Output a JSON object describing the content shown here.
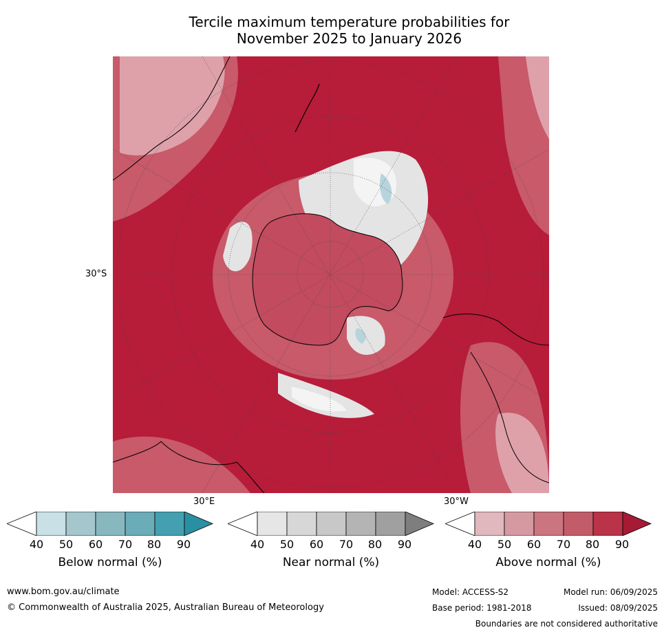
{
  "title_line1": "Tercile maximum temperature probabilities for",
  "title_line2": "November 2025 to January 2026",
  "map": {
    "lat_label": "30°S",
    "lon_label_e": "30°E",
    "lon_label_w": "30°W",
    "colors": {
      "above_strong": "#b71c39",
      "above_mid": "#c85a6a",
      "above_light": "#dea1aa",
      "near_light": "#e4e4e4",
      "below_light": "#b7d4dc"
    }
  },
  "legends": [
    {
      "label": "Below normal (%)",
      "ticks": [
        "40",
        "50",
        "60",
        "70",
        "80",
        "90"
      ],
      "colors": [
        "#ffffff",
        "#c8e0e6",
        "#a5c6cd",
        "#89b7bf",
        "#6aacb8",
        "#44a0b0",
        "#2a8fa3"
      ]
    },
    {
      "label": "Near normal (%)",
      "ticks": [
        "40",
        "50",
        "60",
        "70",
        "80",
        "90"
      ],
      "colors": [
        "#ffffff",
        "#e6e6e6",
        "#d7d7d7",
        "#c8c8c8",
        "#b4b4b4",
        "#a0a0a0",
        "#7e7e7e"
      ]
    },
    {
      "label": "Above normal (%)",
      "ticks": [
        "40",
        "50",
        "60",
        "70",
        "80",
        "90"
      ],
      "colors": [
        "#ffffff",
        "#e0b8bd",
        "#d59aa1",
        "#cb7580",
        "#c35c69",
        "#ba3349",
        "#a61a33"
      ]
    }
  ],
  "footer": {
    "website": "www.bom.gov.au/climate",
    "copyright": "© Commonwealth of Australia 2025, Australian Bureau of Meteorology",
    "model": "Model: ACCESS-S2",
    "model_run": "Model run: 06/09/2025",
    "base_period": "Base period: 1981-2018",
    "issued": "Issued: 08/09/2025",
    "disclaimer": "Boundaries are not considered authoritative"
  }
}
